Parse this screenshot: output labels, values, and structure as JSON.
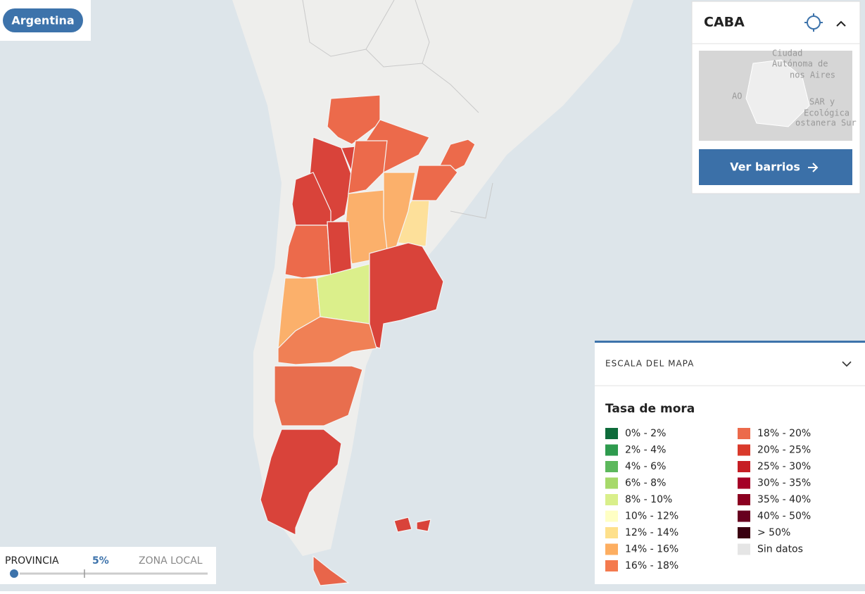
{
  "badge": "Argentina",
  "panel": {
    "title": "CABA",
    "thumbnail_labels": [
      "Ciudad",
      "Autónoma de",
      "nos Aires",
      "AO",
      "SAR y",
      "Ecológica",
      "ostanera Sur"
    ],
    "button": "Ver barrios"
  },
  "legend": {
    "header": "ESCALA DEL MAPA",
    "title": "Tasa de mora",
    "items": [
      {
        "label": "0% - 2%",
        "color": "#0d6b3a"
      },
      {
        "label": "2% - 4%",
        "color": "#2e9b4e"
      },
      {
        "label": "4% - 6%",
        "color": "#5cb85c"
      },
      {
        "label": "6% - 8%",
        "color": "#a6d96a"
      },
      {
        "label": "8% - 10%",
        "color": "#d9ef8b"
      },
      {
        "label": "10% - 12%",
        "color": "#ffffc4"
      },
      {
        "label": "12% - 14%",
        "color": "#fee08b"
      },
      {
        "label": "14% - 16%",
        "color": "#fdae61"
      },
      {
        "label": "16% - 18%",
        "color": "#f47a4e"
      },
      {
        "label": "18% - 20%",
        "color": "#ec6a4b"
      },
      {
        "label": "20% - 25%",
        "color": "#d93a2b"
      },
      {
        "label": "25% - 30%",
        "color": "#c61e24"
      },
      {
        "label": "30% - 35%",
        "color": "#a50026"
      },
      {
        "label": "35% - 40%",
        "color": "#8b0020"
      },
      {
        "label": "40% - 50%",
        "color": "#67001f"
      },
      {
        "label": "> 50%",
        "color": "#3a0010"
      },
      {
        "label": "Sin datos",
        "color": "#e5e5e5"
      }
    ]
  },
  "slider": {
    "left": "PROVINCIA",
    "value": "5%",
    "right": "ZONA LOCAL"
  }
}
